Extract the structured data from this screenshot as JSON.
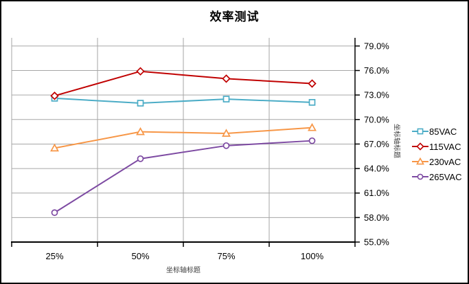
{
  "chart": {
    "title": "效率测试",
    "x_axis_title": "坐标轴标题",
    "y_axis_title": "坐标轴标题"
  },
  "chart_data": {
    "type": "line",
    "title": "效率测试",
    "xlabel": "坐标轴标题",
    "ylabel": "坐标轴标题",
    "categories": [
      "25%",
      "50%",
      "75%",
      "100%"
    ],
    "series": [
      {
        "name": "85VAC",
        "marker": "square",
        "color": "#4BACC6",
        "values": [
          72.6,
          72.0,
          72.5,
          72.1
        ]
      },
      {
        "name": "115VAC",
        "marker": "diamond",
        "color": "#C00000",
        "values": [
          72.9,
          75.9,
          75.0,
          74.4
        ]
      },
      {
        "name": "230vAC",
        "marker": "triangle",
        "color": "#F79646",
        "values": [
          66.5,
          68.5,
          68.3,
          69.0
        ]
      },
      {
        "name": "265VAC",
        "marker": "circle",
        "color": "#7D4AA2",
        "values": [
          58.6,
          65.2,
          66.8,
          67.4
        ]
      }
    ],
    "ylim": [
      55,
      80
    ],
    "y_tick_values": [
      55,
      58,
      61,
      64,
      67,
      70,
      73,
      76,
      79
    ],
    "y_tick_labels": [
      "55.0%",
      "58.0%",
      "61.0%",
      "64.0%",
      "67.0%",
      "70.0%",
      "73.0%",
      "76.0%",
      "79.0%"
    ],
    "grid": true,
    "legend_position": "right"
  },
  "colors": {
    "gridline": "#A6A6A6",
    "axis_line": "#000000",
    "tick_text": "#000000",
    "axis_title_text": "#3F3F3F",
    "background": "#FFFFFF",
    "border": "#000000"
  }
}
